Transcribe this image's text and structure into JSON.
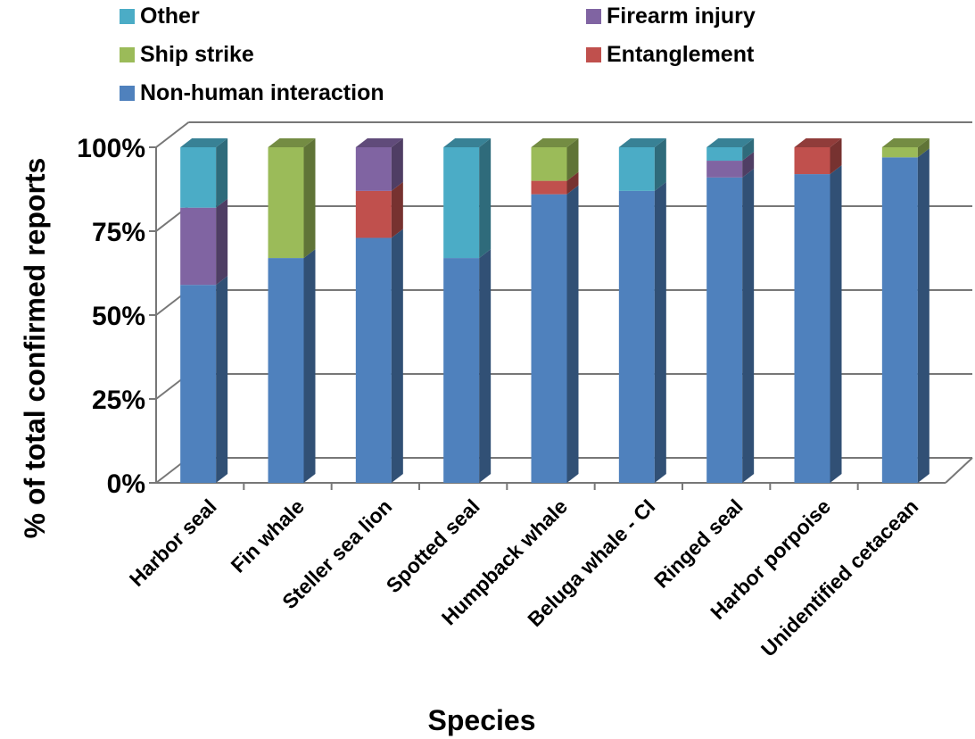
{
  "chart_data": {
    "type": "bar",
    "stacked": true,
    "three_d": true,
    "xlabel": "Species",
    "ylabel": "% of total confirmed reports",
    "ylim": [
      0,
      100
    ],
    "yticks": [
      "0%",
      "25%",
      "50%",
      "75%",
      "100%"
    ],
    "grid": true,
    "legend_position": "top",
    "categories": [
      "Harbor seal",
      "Fin whale",
      "Steller sea lion",
      "Spotted seal",
      "Humpback whale",
      "Beluga whale - CI",
      "Ringed seal",
      "Harbor porpoise",
      "Unidentified cetacean"
    ],
    "series": [
      {
        "name": "Non-human interaction",
        "color": "#4F81BD",
        "values": [
          59,
          67,
          73,
          67,
          86,
          87,
          91,
          92,
          97
        ]
      },
      {
        "name": "Entanglement",
        "color": "#C0504D",
        "values": [
          0,
          0,
          14,
          0,
          4,
          0,
          0,
          8,
          0
        ]
      },
      {
        "name": "Firearm injury",
        "color": "#8064A2",
        "values": [
          23,
          0,
          13,
          0,
          0,
          0,
          5,
          0,
          0
        ]
      },
      {
        "name": "Ship strike",
        "color": "#9BBB59",
        "values": [
          0,
          33,
          0,
          0,
          10,
          0,
          0,
          0,
          3
        ]
      },
      {
        "name": "Other",
        "color": "#4BACC6",
        "values": [
          18,
          0,
          0,
          33,
          0,
          13,
          4,
          0,
          0
        ]
      }
    ]
  }
}
